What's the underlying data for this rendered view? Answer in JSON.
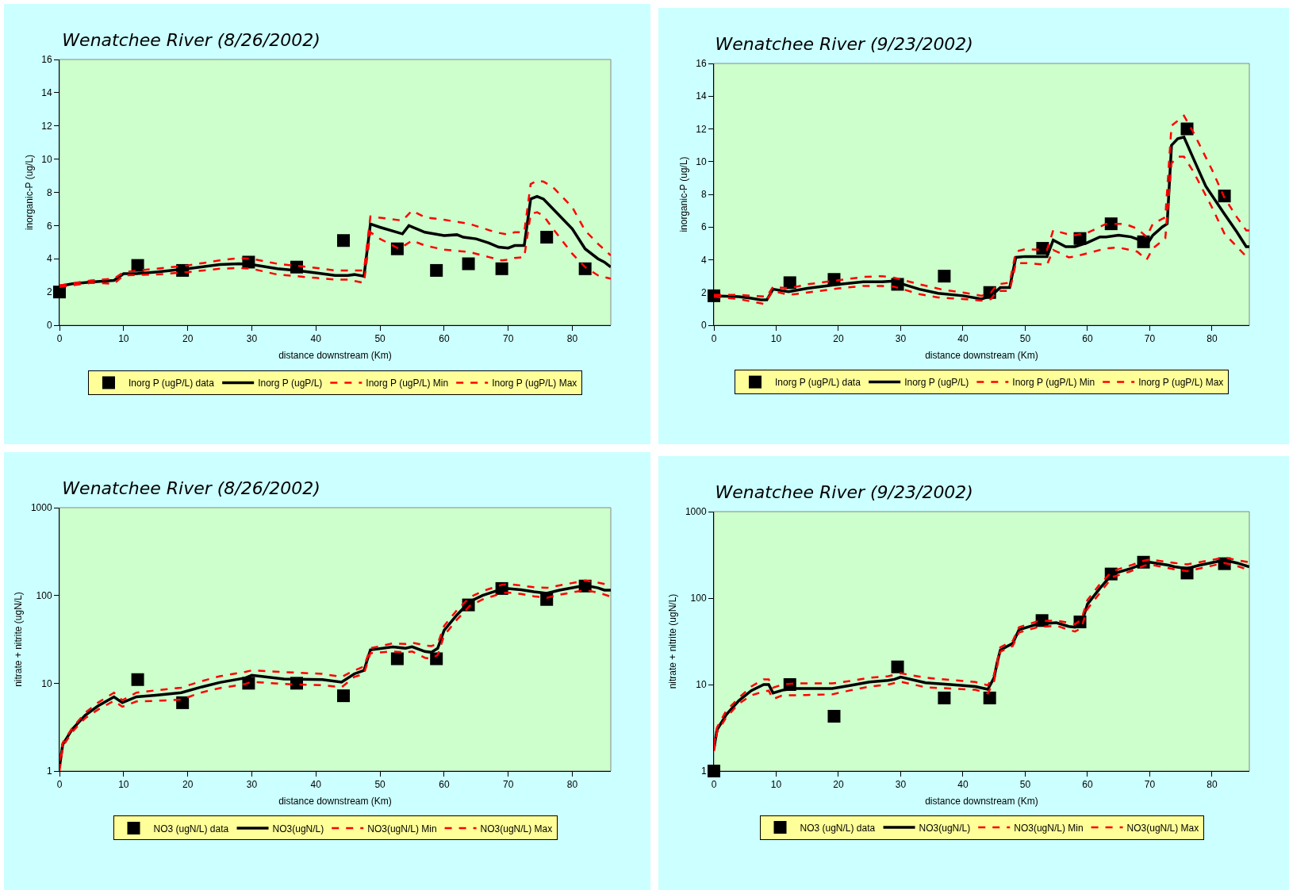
{
  "chart_data": [
    {
      "type": "line",
      "title": "Wenatchee River (8/26/2002)",
      "xlabel": "distance downstream (Km)",
      "ylabel": "inorganic-P (ug/L)",
      "xlim": [
        0,
        86
      ],
      "xticks": [
        0,
        10,
        20,
        30,
        40,
        50,
        60,
        70,
        80
      ],
      "ylim": [
        0,
        16
      ],
      "yticks": [
        0,
        2,
        4,
        6,
        8,
        10,
        12,
        14,
        16
      ],
      "legend": "bottom",
      "series": [
        {
          "name": "Inorg P (ugP/L) data",
          "type": "scatter",
          "marker": "square",
          "color": "#000000",
          "x": [
            0,
            12.2,
            19.2,
            29.5,
            37,
            44.3,
            52.7,
            58.8,
            63.8,
            69,
            76,
            82
          ],
          "values": [
            2,
            3.6,
            3.3,
            3.8,
            3.5,
            5.1,
            4.6,
            3.3,
            3.7,
            3.4,
            5.3,
            3.4
          ]
        },
        {
          "name": "Inorg P (ugP/L)",
          "type": "line",
          "line_style": "solid",
          "color": "#000000",
          "x": [
            0,
            2,
            5,
            8.5,
            10,
            12,
            15,
            20,
            25,
            28,
            30,
            34,
            37,
            40,
            43,
            45,
            46,
            47.5,
            48.5,
            50,
            53.5,
            54.5,
            57,
            60,
            62,
            63,
            65,
            67,
            68.5,
            70,
            71,
            72.5,
            73.5,
            74.5,
            75.5,
            77,
            80,
            82,
            84,
            85,
            86
          ],
          "values": [
            2.35,
            2.5,
            2.6,
            2.7,
            3.1,
            3.1,
            3.2,
            3.4,
            3.65,
            3.7,
            3.65,
            3.4,
            3.3,
            3.15,
            3.0,
            3.0,
            3.05,
            2.95,
            6.1,
            5.9,
            5.5,
            6.0,
            5.6,
            5.4,
            5.45,
            5.3,
            5.2,
            4.95,
            4.7,
            4.65,
            4.8,
            4.8,
            7.6,
            7.75,
            7.6,
            7.0,
            5.8,
            4.6,
            4.0,
            3.8,
            3.5
          ]
        },
        {
          "name": "Inorg P (ugP/L) Min",
          "type": "line",
          "line_style": "dashed",
          "color": "#ff0000",
          "x": [
            0,
            5,
            8.5,
            10,
            15,
            20,
            25,
            28,
            30,
            34,
            40,
            43,
            45,
            47.5,
            48.5,
            50,
            53,
            55,
            57,
            60,
            64,
            67,
            69,
            70,
            71,
            72.5,
            73.5,
            74.5,
            75.5,
            77,
            80,
            82,
            84,
            86
          ],
          "values": [
            2.3,
            2.55,
            2.5,
            3.0,
            3.05,
            3.2,
            3.4,
            3.45,
            3.4,
            3.05,
            2.85,
            2.75,
            2.75,
            2.55,
            5.6,
            5.2,
            4.6,
            5.1,
            4.8,
            4.55,
            4.4,
            4.1,
            3.9,
            3.95,
            4.05,
            4.1,
            6.7,
            6.8,
            6.6,
            5.8,
            4.3,
            3.5,
            3.0,
            2.8
          ]
        },
        {
          "name": "Inorg P (ugP/L) Max",
          "type": "line",
          "line_style": "dashed",
          "color": "#ff0000",
          "x": [
            0,
            5,
            8.5,
            10,
            15,
            20,
            25,
            28,
            30,
            34,
            40,
            43,
            47.5,
            48.5,
            53.5,
            55,
            57,
            60,
            64,
            68,
            70,
            71,
            72.5,
            73.5,
            74.5,
            75.5,
            77,
            80,
            82,
            84,
            86
          ],
          "values": [
            2.4,
            2.7,
            2.8,
            3.2,
            3.4,
            3.6,
            3.9,
            4.05,
            4.0,
            3.7,
            3.45,
            3.3,
            3.3,
            6.55,
            6.3,
            6.9,
            6.5,
            6.35,
            6.1,
            5.6,
            5.45,
            5.6,
            5.6,
            8.5,
            8.7,
            8.65,
            8.3,
            7.1,
            5.7,
            4.9,
            4.2
          ]
        }
      ]
    },
    {
      "type": "line",
      "title": "Wenatchee River (9/23/2002)",
      "xlabel": "distance downstream (Km)",
      "ylabel": "inorganic-P (ug/L)",
      "xlim": [
        0,
        86
      ],
      "xticks": [
        0,
        10,
        20,
        30,
        40,
        50,
        60,
        70,
        80
      ],
      "ylim": [
        0,
        16
      ],
      "yticks": [
        0,
        2,
        4,
        6,
        8,
        10,
        12,
        14,
        16
      ],
      "legend": "bottom",
      "series": [
        {
          "name": "Inorg P (ugP/L) data",
          "type": "scatter",
          "marker": "square",
          "color": "#000000",
          "x": [
            0,
            12.2,
            19.3,
            29.5,
            37,
            44.3,
            52.8,
            58.8,
            63.8,
            69,
            76,
            82
          ],
          "values": [
            1.8,
            2.6,
            2.8,
            2.5,
            3.0,
            2.0,
            4.7,
            5.3,
            6.2,
            5.1,
            12.0,
            7.9
          ]
        },
        {
          "name": "Inorg P (ugP/L)",
          "type": "line",
          "line_style": "solid",
          "color": "#000000",
          "x": [
            0,
            4,
            6,
            7.5,
            8.5,
            9.5,
            12,
            15,
            20,
            24,
            27,
            29,
            30,
            33,
            36,
            40,
            43,
            44.5,
            46,
            47.5,
            48.5,
            50,
            53.5,
            54.5,
            56.5,
            58,
            60,
            62,
            63,
            65,
            67,
            68.5,
            69.5,
            70.5,
            72,
            72.8,
            73.5,
            74.5,
            75.5,
            77,
            79,
            82,
            84,
            85.5,
            86
          ],
          "values": [
            1.8,
            1.75,
            1.65,
            1.55,
            1.55,
            2.2,
            2.05,
            2.25,
            2.5,
            2.65,
            2.65,
            2.7,
            2.55,
            2.2,
            1.95,
            1.8,
            1.6,
            1.8,
            2.3,
            2.3,
            4.15,
            4.2,
            4.2,
            5.2,
            4.8,
            4.8,
            5.05,
            5.4,
            5.4,
            5.5,
            5.4,
            5.2,
            4.9,
            5.5,
            6.0,
            6.2,
            11.0,
            11.4,
            11.5,
            10.2,
            8.5,
            6.8,
            5.7,
            4.8,
            4.8
          ]
        },
        {
          "name": "Inorg P (ugP/L) Min",
          "type": "line",
          "line_style": "dashed",
          "color": "#ff0000",
          "x": [
            0,
            4,
            8,
            9.5,
            12,
            15,
            20,
            24,
            27,
            29,
            33,
            36,
            40,
            43,
            44.5,
            45.5,
            47.5,
            48.5,
            50,
            53.5,
            54.5,
            57,
            58,
            60,
            63,
            65,
            68,
            69.5,
            70.5,
            72.5,
            73.5,
            74.5,
            75.5,
            77,
            80,
            82,
            84,
            86
          ],
          "values": [
            1.75,
            1.6,
            1.3,
            2.1,
            1.85,
            2.0,
            2.25,
            2.4,
            2.4,
            2.35,
            1.9,
            1.7,
            1.6,
            1.5,
            1.6,
            2.1,
            2.1,
            3.8,
            3.8,
            3.7,
            4.6,
            4.15,
            4.2,
            4.4,
            4.7,
            4.75,
            4.5,
            4.0,
            4.7,
            5.3,
            9.9,
            10.3,
            10.3,
            9.4,
            7.2,
            5.6,
            4.8,
            4.0
          ]
        },
        {
          "name": "Inorg P (ugP/L) Max",
          "type": "line",
          "line_style": "dashed",
          "color": "#ff0000",
          "x": [
            0,
            4,
            8.5,
            9.5,
            12,
            15,
            20,
            24,
            27,
            29,
            33,
            37,
            40,
            43,
            44.5,
            45.5,
            47.5,
            48.5,
            50,
            53.5,
            54.5,
            57,
            58,
            60,
            63,
            66,
            68,
            69.5,
            70.5,
            72.5,
            73.5,
            75.5,
            77,
            80,
            82,
            84,
            85.5,
            86
          ],
          "values": [
            1.85,
            1.85,
            1.75,
            2.35,
            2.25,
            2.5,
            2.75,
            2.95,
            3.0,
            2.9,
            2.5,
            2.15,
            2.0,
            1.8,
            2.0,
            2.5,
            2.6,
            4.5,
            4.65,
            4.6,
            5.8,
            5.55,
            5.5,
            5.65,
            6.2,
            6.2,
            5.9,
            5.4,
            6.2,
            6.6,
            12.2,
            12.8,
            11.8,
            9.5,
            7.8,
            6.6,
            5.8,
            5.8
          ]
        }
      ]
    },
    {
      "type": "line",
      "title": "Wenatchee River (8/26/2002)",
      "xlabel": "distance downstream (Km)",
      "ylabel": "nitrate + nitrite (ugN/L)",
      "xlim": [
        0,
        86
      ],
      "xticks": [
        0,
        10,
        20,
        30,
        40,
        50,
        60,
        70,
        80
      ],
      "ylim": [
        1,
        1000
      ],
      "yticks": [
        1,
        10,
        100,
        1000
      ],
      "log": "y",
      "legend": "bottom",
      "series": [
        {
          "name": "NO3 (ugN/L) data",
          "type": "scatter",
          "marker": "square",
          "color": "#000000",
          "x": [
            12.2,
            19.2,
            29.5,
            37,
            44.3,
            52.7,
            58.8,
            63.8,
            69,
            76,
            82
          ],
          "values": [
            11,
            6,
            10,
            10,
            7.2,
            19,
            19,
            78,
            120,
            90,
            128
          ]
        },
        {
          "name": "NO3(ugN/L)",
          "type": "line",
          "line_style": "solid",
          "color": "#000000",
          "x": [
            0,
            0.5,
            2,
            4,
            6,
            8.5,
            9.8,
            12,
            15,
            19,
            22,
            25,
            29,
            30,
            35,
            41,
            44,
            46,
            47.5,
            48.5,
            52,
            54,
            55,
            57,
            58,
            59,
            60,
            62,
            64,
            66,
            69,
            70,
            72,
            74,
            76,
            78,
            82,
            84,
            85,
            86
          ],
          "values": [
            1.1,
            2,
            3,
            4.3,
            5.5,
            7,
            6.0,
            7,
            7.3,
            7.8,
            9,
            10.2,
            11.5,
            12.3,
            11.2,
            11,
            10.3,
            12.8,
            14,
            24,
            26,
            25,
            26,
            23,
            22.5,
            25,
            40,
            60,
            85,
            100,
            118,
            120,
            116,
            110,
            106,
            115,
            130,
            122,
            115,
            115
          ]
        },
        {
          "name": "NO3(ugN/L) Min",
          "type": "line",
          "line_style": "dashed",
          "color": "#ff0000",
          "x": [
            0,
            0.5,
            2,
            4,
            6,
            8.5,
            9.8,
            12,
            15,
            19,
            22,
            25,
            29,
            30,
            35,
            41,
            44,
            46,
            47.5,
            48.5,
            52,
            54,
            55,
            57,
            58,
            59,
            60,
            62,
            64,
            66,
            69,
            70,
            72,
            74,
            76,
            78,
            82,
            84,
            86
          ],
          "values": [
            1.0,
            1.9,
            2.8,
            4.0,
            5,
            6.3,
            5.4,
            6.2,
            6.3,
            6.5,
            7.8,
            8.8,
            9.8,
            10.4,
            9.8,
            9.5,
            9,
            11.8,
            12.8,
            22,
            23,
            22.5,
            23,
            19.5,
            19,
            21,
            35,
            53,
            76,
            90,
            106,
            108,
            104,
            98,
            94,
            102,
            115,
            108,
            97
          ]
        },
        {
          "name": "NO3(ugN/L) Max",
          "type": "line",
          "line_style": "dashed",
          "color": "#ff0000",
          "x": [
            0,
            0.5,
            2,
            4,
            6,
            8.5,
            9.8,
            12,
            15,
            19,
            22,
            25,
            29,
            30,
            35,
            41,
            44,
            46,
            47.5,
            48.5,
            52,
            54,
            55,
            57,
            58,
            59,
            60,
            62,
            64,
            66,
            69,
            70,
            72,
            74,
            76,
            78,
            82,
            84,
            86
          ],
          "values": [
            1.3,
            2.1,
            3.1,
            4.6,
            6,
            7.8,
            6.4,
            7.8,
            8.3,
            8.9,
            10.5,
            12,
            13.5,
            14,
            13.4,
            12.8,
            11.8,
            14,
            15.5,
            25,
            28.5,
            28,
            29,
            27,
            26.5,
            28,
            45,
            68,
            95,
            112,
            132,
            135,
            130,
            124,
            122,
            130,
            148,
            140,
            130
          ]
        }
      ]
    },
    {
      "type": "line",
      "title": "Wenatchee River (9/23/2002)",
      "xlabel": "distance downstream (Km)",
      "ylabel": "nitrate + nitrite (ugN/L)",
      "xlim": [
        0,
        86
      ],
      "xticks": [
        0,
        10,
        20,
        30,
        40,
        50,
        60,
        70,
        80
      ],
      "ylim": [
        1,
        1000
      ],
      "yticks": [
        1,
        10,
        100,
        1000
      ],
      "log": "y",
      "legend": "bottom",
      "series": [
        {
          "name": "NO3 (ugN/L) data",
          "type": "scatter",
          "marker": "square",
          "color": "#000000",
          "x": [
            0,
            12.2,
            19.3,
            29.5,
            37,
            44.3,
            52.7,
            58.8,
            63.8,
            69,
            76,
            82
          ],
          "values": [
            1,
            10,
            4.3,
            16,
            7,
            7,
            55,
            53,
            190,
            260,
            195,
            250
          ]
        },
        {
          "name": "NO3(ugN/L)",
          "type": "line",
          "line_style": "solid",
          "color": "#000000",
          "x": [
            0,
            0.5,
            2,
            4,
            6,
            8,
            8.8,
            9.5,
            11,
            13,
            17,
            19,
            22,
            25,
            28,
            29,
            30,
            34,
            38,
            42,
            44,
            45,
            45.5,
            46,
            48,
            49,
            52,
            55,
            57,
            58,
            59,
            60,
            62,
            64,
            67,
            69,
            70,
            73,
            74,
            76,
            78,
            82,
            84,
            86
          ],
          "values": [
            1.8,
            3,
            4.5,
            6.5,
            8.5,
            10,
            10,
            8,
            8.6,
            9,
            9,
            9,
            9.8,
            10.7,
            11.2,
            11.5,
            12.2,
            10.5,
            10,
            9.5,
            8.8,
            12,
            18,
            25,
            30,
            43,
            50,
            52,
            47,
            46,
            50,
            85,
            130,
            190,
            220,
            250,
            260,
            240,
            230,
            220,
            240,
            275,
            255,
            230
          ]
        },
        {
          "name": "NO3(ugN/L) Min",
          "type": "line",
          "line_style": "dashed",
          "color": "#ff0000",
          "x": [
            0,
            0.5,
            2,
            4,
            6,
            8,
            8.8,
            9.5,
            11,
            13,
            19,
            22,
            25,
            28,
            30,
            34,
            38,
            42,
            44,
            45,
            46,
            48,
            49,
            52,
            55,
            57,
            58,
            59,
            60,
            62,
            64,
            67,
            69,
            70,
            74,
            76,
            78,
            82,
            84,
            86
          ],
          "values": [
            1.7,
            2.8,
            4.2,
            6,
            7.5,
            8.3,
            8.5,
            6.8,
            7.5,
            7.5,
            7.7,
            8.6,
            9.5,
            10,
            10.8,
            9.3,
            9.0,
            8.7,
            7.9,
            11,
            24,
            28,
            40,
            46,
            48,
            43,
            41,
            45,
            75,
            115,
            175,
            205,
            235,
            245,
            215,
            205,
            220,
            255,
            235,
            210
          ]
        },
        {
          "name": "NO3(ugN/L) Max",
          "type": "line",
          "line_style": "dashed",
          "color": "#ff0000",
          "x": [
            0,
            0.5,
            2,
            4,
            6,
            8,
            8.8,
            9.5,
            11,
            13,
            19,
            22,
            25,
            28,
            30,
            34,
            38,
            42,
            44,
            45,
            46,
            48,
            49,
            52,
            55,
            57,
            58,
            59,
            60,
            62,
            64,
            67,
            69,
            70,
            74,
            76,
            78,
            82,
            84,
            86
          ],
          "values": [
            2,
            3.2,
            5,
            7,
            9.5,
            11.5,
            11.5,
            9.2,
            10,
            10.3,
            10.3,
            11,
            12,
            12.5,
            13.5,
            12,
            11.3,
            10.7,
            9.8,
            13,
            27,
            32,
            46,
            54,
            55,
            52,
            50,
            56,
            95,
            145,
            205,
            240,
            270,
            280,
            255,
            245,
            260,
            295,
            275,
            260
          ]
        }
      ]
    }
  ]
}
